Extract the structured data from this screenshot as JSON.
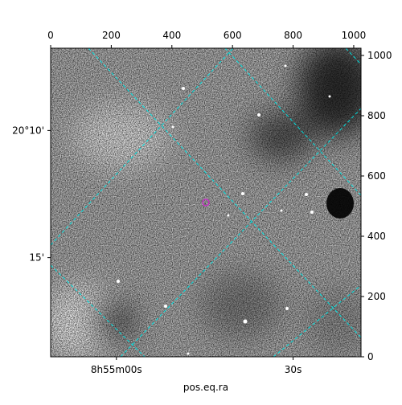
{
  "chart_data": {
    "type": "image",
    "xlabel": "pos.eq.ra",
    "xlim": [
      0,
      1024
    ],
    "ylim": [
      0,
      1024
    ],
    "xticks": [
      0,
      200,
      400,
      600,
      800,
      1000
    ],
    "yticks": [
      0,
      200,
      400,
      600,
      800,
      1000
    ],
    "ra_ticks": [
      {
        "value": 217,
        "label": "8h55m00s"
      },
      {
        "value": 800,
        "label": "30s"
      }
    ],
    "dec_ticks": [
      {
        "value": 751,
        "label": "20°10'"
      },
      {
        "value": 329,
        "label": "15'"
      }
    ],
    "marker": {
      "x": 512,
      "y": 512,
      "color": "#c030c0"
    },
    "grid_color": "#00e0e0"
  }
}
